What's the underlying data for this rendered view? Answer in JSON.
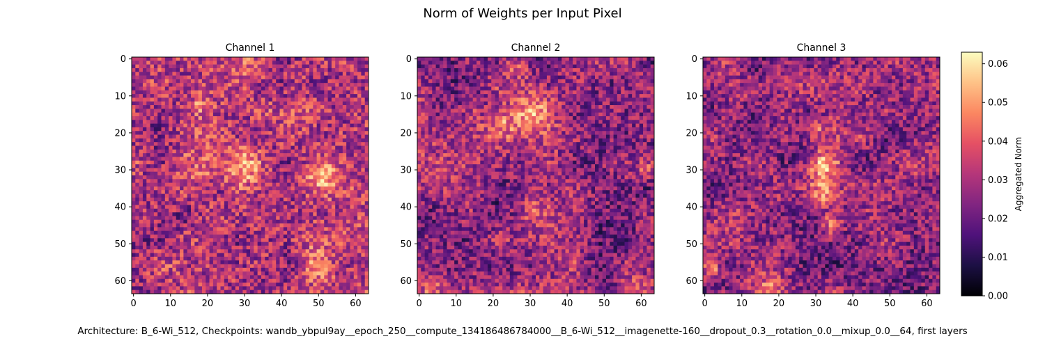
{
  "figure": {
    "title": "Norm of Weights per Input Pixel",
    "caption": "Architecture: B_6-Wi_512, Checkpoints: wandb_ybpul9ay__epoch_250__compute_134186486784000__B_6-Wi_512__imagenette-160__dropout_0.3__rotation_0.0__mixup_0.0__64, first layers"
  },
  "chart_data": [
    {
      "type": "heatmap",
      "title": "Channel 1",
      "grid_size": [
        64,
        64
      ],
      "x_ticks": [
        0,
        10,
        20,
        30,
        40,
        50,
        60
      ],
      "y_ticks": [
        0,
        10,
        20,
        30,
        40,
        50,
        60
      ],
      "xlim": [
        -0.5,
        63.5
      ],
      "ylim": [
        63.5,
        -0.5
      ],
      "value_range": [
        0.0,
        0.063
      ],
      "base_level": 0.031,
      "noise_amplitude": 0.014,
      "seed": 11,
      "bright_regions": [
        {
          "x": 31,
          "y": 29,
          "radius": 4,
          "value": 0.056
        },
        {
          "x": 51,
          "y": 32,
          "radius": 3,
          "value": 0.048
        },
        {
          "x": 18,
          "y": 13,
          "radius": 2,
          "value": 0.044
        },
        {
          "x": 32,
          "y": 3,
          "radius": 3,
          "value": 0.042
        },
        {
          "x": 44,
          "y": 4,
          "radius": 2,
          "value": 0.042
        },
        {
          "x": 49,
          "y": 56,
          "radius": 3,
          "value": 0.042
        },
        {
          "x": 18,
          "y": 31,
          "radius": 2,
          "value": 0.042
        }
      ]
    },
    {
      "type": "heatmap",
      "title": "Channel 2",
      "grid_size": [
        64,
        64
      ],
      "x_ticks": [
        0,
        10,
        20,
        30,
        40,
        50,
        60
      ],
      "y_ticks": [
        0,
        10,
        20,
        30,
        40,
        50,
        60
      ],
      "xlim": [
        -0.5,
        63.5
      ],
      "ylim": [
        63.5,
        -0.5
      ],
      "value_range": [
        0.0,
        0.063
      ],
      "base_level": 0.026,
      "noise_amplitude": 0.013,
      "seed": 23,
      "bright_regions": [
        {
          "x": 30,
          "y": 15,
          "radius": 4,
          "value": 0.052
        },
        {
          "x": 22,
          "y": 17,
          "radius": 3,
          "value": 0.042
        },
        {
          "x": 31,
          "y": 41,
          "radius": 2,
          "value": 0.04
        },
        {
          "x": 62,
          "y": 30,
          "radius": 2,
          "value": 0.044
        },
        {
          "x": 3,
          "y": 62,
          "radius": 2,
          "value": 0.046
        },
        {
          "x": 58,
          "y": 63,
          "radius": 3,
          "value": 0.042
        },
        {
          "x": 26,
          "y": 2,
          "radius": 2,
          "value": 0.04
        }
      ]
    },
    {
      "type": "heatmap",
      "title": "Channel 3",
      "grid_size": [
        64,
        64
      ],
      "x_ticks": [
        0,
        10,
        20,
        30,
        40,
        50,
        60
      ],
      "y_ticks": [
        0,
        10,
        20,
        30,
        40,
        50,
        60
      ],
      "xlim": [
        -0.5,
        63.5
      ],
      "ylim": [
        63.5,
        -0.5
      ],
      "value_range": [
        0.0,
        0.063
      ],
      "base_level": 0.026,
      "noise_amplitude": 0.013,
      "seed": 37,
      "bright_regions": [
        {
          "x": 32,
          "y": 29,
          "radius": 3,
          "value": 0.056
        },
        {
          "x": 32,
          "y": 37,
          "radius": 3,
          "value": 0.048
        },
        {
          "x": 34,
          "y": 45,
          "radius": 2,
          "value": 0.046
        },
        {
          "x": 30,
          "y": 19,
          "radius": 2,
          "value": 0.042
        },
        {
          "x": 2,
          "y": 57,
          "radius": 2,
          "value": 0.046
        },
        {
          "x": 18,
          "y": 62,
          "radius": 2,
          "value": 0.042
        },
        {
          "x": 13,
          "y": 8,
          "radius": 2,
          "value": 0.04
        }
      ]
    }
  ],
  "colorbar": {
    "label": "Aggregated Norm",
    "colormap": "magma",
    "min": 0.0,
    "max": 0.063,
    "ticks": [
      "0.00",
      "0.01",
      "0.02",
      "0.03",
      "0.04",
      "0.05",
      "0.06"
    ],
    "colors": [
      "#000004",
      "#1c1044",
      "#4f127b",
      "#812581",
      "#b5367a",
      "#e55064",
      "#fb8761",
      "#fec287",
      "#fcfdbf"
    ]
  }
}
